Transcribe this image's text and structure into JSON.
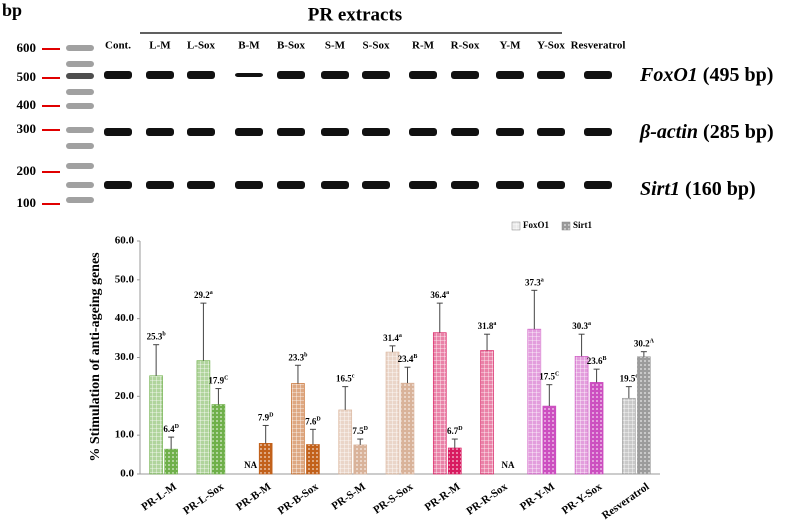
{
  "gel": {
    "unit": "bp",
    "ladder": [
      "600",
      "500",
      "400",
      "300",
      "200",
      "100"
    ],
    "group_label": "PR extracts",
    "lanes": [
      "Cont.",
      "L-M",
      "L-Sox",
      "B-M",
      "B-Sox",
      "S-M",
      "S-Sox",
      "R-M",
      "R-Sox",
      "Y-M",
      "Y-Sox",
      "Resveratrol"
    ],
    "genes": [
      {
        "name": "FoxO1",
        "size": "(495 bp)"
      },
      {
        "name": "β-actin",
        "size": "(285 bp)"
      },
      {
        "name": "Sirt1",
        "size": "(160 bp)"
      }
    ]
  },
  "chart_data": {
    "type": "bar",
    "y_label": "% Stimulation of anti-ageing genes",
    "categories": [
      "PR-L-M",
      "PR-L-Sox",
      "PR-B-M",
      "PR-B-Sox",
      "PR-S-M",
      "PR-S-Sox",
      "PR-R-M",
      "PR-R-Sox",
      "PR-Y-M",
      "PR-Y-Sox",
      "Resveratrol"
    ],
    "colors": [
      "#6fb04a",
      "#6fb04a",
      "#c2611b",
      "#c2611b",
      "#d9b39a",
      "#d9b39a",
      "#d81b60",
      "#d81b60",
      "#cc4fc0",
      "#cc4fc0",
      "#9c9c9c"
    ],
    "series": [
      {
        "name": "FoxO1",
        "color": "#d8d8d8",
        "values": [
          25.3,
          29.2,
          null,
          23.3,
          16.5,
          31.4,
          36.4,
          31.8,
          37.3,
          30.3,
          19.5
        ],
        "errors": [
          8,
          14.8,
          null,
          4.7,
          6,
          1.6,
          7.6,
          4.2,
          10,
          5.7,
          3
        ],
        "value_labels": [
          "25.3",
          "29.2",
          "NA",
          "23.3",
          "16.5",
          "31.4",
          "36.4",
          "31.8",
          "37.3",
          "30.3",
          "19.5"
        ],
        "letters": [
          "b",
          "a",
          null,
          "b",
          "c",
          "a",
          "a",
          "a",
          "a",
          "a",
          "c"
        ]
      },
      {
        "name": "Sirt1",
        "color": "#9a9a9a",
        "values": [
          6.4,
          17.9,
          7.9,
          7.6,
          7.5,
          23.4,
          6.7,
          null,
          17.5,
          23.6,
          30.2
        ],
        "errors": [
          3.1,
          4.1,
          4.6,
          3.9,
          1.5,
          4.1,
          2.3,
          null,
          5.5,
          3.4,
          1.3
        ],
        "value_labels": [
          "6.4",
          "17.9",
          "7.9",
          "7.6",
          "7.5",
          "23.4",
          "6.7",
          "NA",
          "17.5",
          "23.6",
          "30.2"
        ],
        "letters": [
          "D",
          "C",
          "D",
          "D",
          "D",
          "B",
          "D",
          null,
          "C",
          "B",
          "A"
        ]
      }
    ],
    "ylim": [
      0,
      60
    ],
    "yticks": [
      {
        "value": 0,
        "label": "0.0"
      },
      {
        "value": 10,
        "label": "10.0"
      },
      {
        "value": 20,
        "label": "20.0"
      },
      {
        "value": 30,
        "label": "30.0"
      },
      {
        "value": 40,
        "label": "40.0"
      },
      {
        "value": 50,
        "label": "50.0"
      },
      {
        "value": 60,
        "label": "60.0"
      }
    ]
  }
}
